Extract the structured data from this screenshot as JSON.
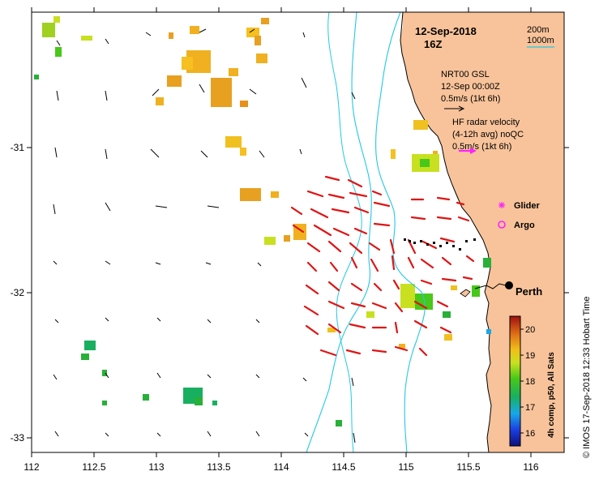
{
  "header": {
    "date": "12-Sep-2018",
    "hour": "16Z"
  },
  "isobath_legend": {
    "depth_1": "200m",
    "depth_2": "1000m"
  },
  "model_legend": {
    "title": "NRT00 GSL",
    "time": "12-Sep 00:00Z",
    "scale": "0.5m/s (1kt 6h)"
  },
  "radar_legend": {
    "title": "HF radar velocity",
    "avg": "(4-12h avg) noQC",
    "scale": "0.5m/s (1kt 6h)"
  },
  "markers": {
    "glider": "Glider",
    "argo": "Argo",
    "city": "Perth"
  },
  "colorbar": {
    "label": "4h comp, p50, All Sats",
    "ticks": [
      "16",
      "17",
      "18",
      "19",
      "20"
    ],
    "min": 15.5,
    "max": 20.5
  },
  "axes": {
    "x_ticks": [
      "112",
      "112.5",
      "113",
      "113.5",
      "114",
      "114.5",
      "115",
      "115.5",
      "116"
    ],
    "y_ticks": [
      "-31",
      "-32",
      "-33"
    ]
  },
  "credit": "© IMOS 17-Sep-2018 12:33 Hobart Time",
  "colors": {
    "land": "#f8c39a",
    "isobath": "#22c8e6",
    "radar_arrow": "#e01414",
    "model_arrow": "#000000",
    "marker": "#ff22ff"
  }
}
